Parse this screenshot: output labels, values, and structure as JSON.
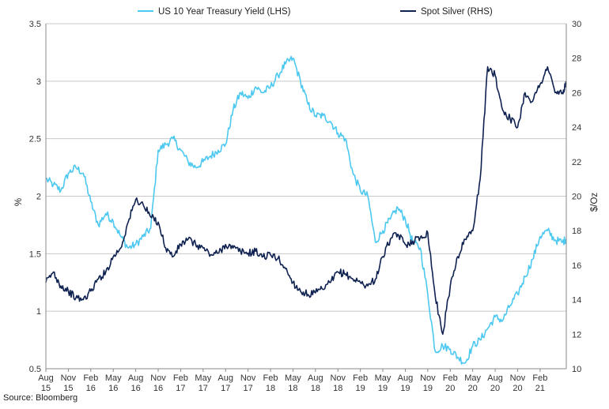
{
  "chart_data": {
    "type": "line",
    "title": "",
    "legend": {
      "placement": "top",
      "entries": [
        {
          "label": "US 10 Year Treasury Yield (LHS)",
          "color": "#4dc8f0"
        },
        {
          "label": "Spot Silver (RHS)",
          "color": "#0e2150"
        }
      ]
    },
    "ylabel_left": "%",
    "ylabel_right": "$/Oz",
    "ylim_left": [
      0.5,
      3.5
    ],
    "ylim_right": [
      10,
      30
    ],
    "yticks_left": [
      "0.5",
      "1",
      "1.5",
      "2",
      "2.5",
      "3",
      "3.5"
    ],
    "yticks_right": [
      "10",
      "12",
      "14",
      "16",
      "18",
      "20",
      "22",
      "24",
      "26",
      "28",
      "30"
    ],
    "x_ticks": [
      {
        "month": "Aug",
        "year": "15"
      },
      {
        "month": "Nov",
        "year": "15"
      },
      {
        "month": "Feb",
        "year": "16"
      },
      {
        "month": "May",
        "year": "16"
      },
      {
        "month": "Aug",
        "year": "16"
      },
      {
        "month": "Nov",
        "year": "16"
      },
      {
        "month": "Feb",
        "year": "17"
      },
      {
        "month": "May",
        "year": "17"
      },
      {
        "month": "Aug",
        "year": "17"
      },
      {
        "month": "Nov",
        "year": "17"
      },
      {
        "month": "Feb",
        "year": "18"
      },
      {
        "month": "May",
        "year": "18"
      },
      {
        "month": "Aug",
        "year": "18"
      },
      {
        "month": "Nov",
        "year": "18"
      },
      {
        "month": "Feb",
        "year": "19"
      },
      {
        "month": "May",
        "year": "19"
      },
      {
        "month": "Aug",
        "year": "19"
      },
      {
        "month": "Nov",
        "year": "19"
      },
      {
        "month": "Feb",
        "year": "20"
      },
      {
        "month": "May",
        "year": "20"
      },
      {
        "month": "Aug",
        "year": "20"
      },
      {
        "month": "Nov",
        "year": "20"
      },
      {
        "month": "Feb",
        "year": "21"
      }
    ],
    "grid": "horizontal",
    "x_unit": "months from Aug 2015",
    "x_range": [
      0,
      69.5
    ],
    "series": [
      {
        "name": "US 10 Year Treasury Yield (LHS)",
        "axis": "left",
        "color": "#4dc8f0",
        "x": [
          0,
          1,
          2,
          3,
          4,
          5,
          6,
          7,
          8,
          9,
          10,
          11,
          12,
          13,
          14,
          15,
          16,
          17,
          18,
          19,
          20,
          21,
          22,
          23,
          24,
          25,
          26,
          27,
          28,
          29,
          30,
          31,
          32,
          33,
          34,
          35,
          36,
          37,
          38,
          39,
          40,
          41,
          42,
          43,
          44,
          45,
          46,
          47,
          48,
          49,
          50,
          51,
          52,
          53,
          54,
          55,
          56,
          57,
          58,
          59,
          60,
          61,
          62,
          63,
          64,
          65,
          66,
          67,
          68,
          69,
          69.5
        ],
        "y": [
          2.15,
          2.1,
          2.05,
          2.2,
          2.25,
          2.2,
          1.95,
          1.75,
          1.85,
          1.78,
          1.65,
          1.55,
          1.58,
          1.65,
          1.72,
          2.4,
          2.45,
          2.5,
          2.4,
          2.3,
          2.25,
          2.3,
          2.35,
          2.4,
          2.45,
          2.75,
          2.9,
          2.85,
          2.95,
          2.9,
          2.95,
          3.05,
          3.15,
          3.2,
          3.0,
          2.8,
          2.7,
          2.7,
          2.65,
          2.55,
          2.5,
          2.2,
          2.05,
          2.0,
          1.6,
          1.7,
          1.8,
          1.9,
          1.8,
          1.6,
          1.55,
          1.15,
          0.65,
          0.7,
          0.67,
          0.6,
          0.55,
          0.7,
          0.75,
          0.85,
          0.95,
          0.92,
          1.05,
          1.15,
          1.3,
          1.45,
          1.65,
          1.7,
          1.62,
          1.6,
          1.63
        ]
      },
      {
        "name": "Spot Silver (RHS)",
        "axis": "right",
        "color": "#0e2150",
        "x": [
          0,
          1,
          2,
          3,
          4,
          5,
          6,
          7,
          8,
          9,
          10,
          11,
          12,
          13,
          14,
          15,
          16,
          17,
          18,
          19,
          20,
          21,
          22,
          23,
          24,
          25,
          26,
          27,
          28,
          29,
          30,
          31,
          32,
          33,
          34,
          35,
          36,
          37,
          38,
          39,
          40,
          41,
          42,
          43,
          44,
          45,
          46,
          47,
          48,
          49,
          50,
          51,
          52,
          53,
          54,
          55,
          56,
          57,
          58,
          59,
          60,
          61,
          62,
          63,
          64,
          65,
          66,
          67,
          68,
          69,
          69.5
        ],
        "y": [
          15.0,
          15.6,
          14.8,
          14.5,
          14.1,
          14.0,
          14.5,
          15.2,
          15.6,
          16.5,
          17.0,
          18.5,
          19.8,
          19.5,
          18.8,
          18.5,
          17.0,
          16.5,
          17.2,
          17.5,
          17.2,
          17.0,
          16.6,
          16.7,
          17.2,
          17.0,
          16.8,
          16.7,
          16.8,
          16.5,
          16.6,
          16.4,
          15.8,
          15.0,
          14.5,
          14.3,
          14.4,
          14.6,
          15.0,
          15.6,
          15.5,
          15.2,
          15.0,
          14.8,
          15.2,
          16.5,
          17.5,
          17.8,
          17.2,
          17.4,
          17.6,
          17.9,
          14.2,
          12.0,
          14.8,
          16.5,
          17.5,
          18.0,
          21.0,
          27.5,
          27.0,
          25.0,
          24.5,
          24.0,
          26.0,
          25.5,
          26.5,
          27.5,
          26.0,
          26.0,
          26.5
        ]
      }
    ]
  },
  "source": "Source: Bloomberg"
}
